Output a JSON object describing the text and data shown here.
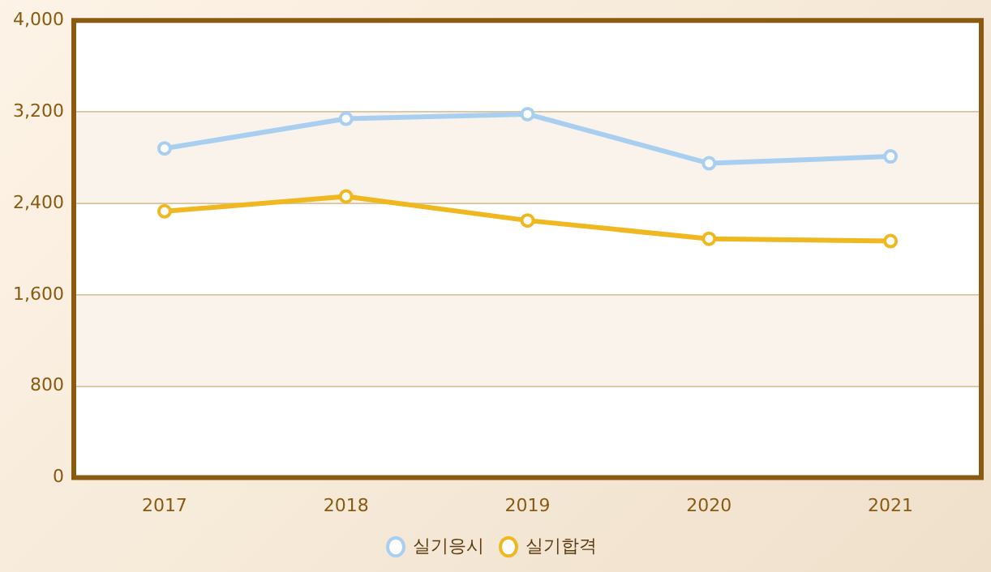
{
  "chart_data": {
    "type": "line",
    "categories": [
      "2017",
      "2018",
      "2019",
      "2020",
      "2021"
    ],
    "series": [
      {
        "name": "실기응시",
        "color": "#a9cff0",
        "values": [
          2880,
          3140,
          3180,
          2750,
          2810
        ]
      },
      {
        "name": "실기합격",
        "color": "#f0b820",
        "values": [
          2330,
          2460,
          2250,
          2090,
          2070
        ]
      }
    ],
    "ylim": [
      0,
      4000
    ],
    "yticks": [
      0,
      800,
      {
        "value": 1600,
        "label": "1,600"
      },
      {
        "value": 2400,
        "label": "2,400"
      },
      {
        "value": 3200,
        "label": "3,200"
      },
      {
        "value": 4000,
        "label": "4,000"
      }
    ],
    "grid": "y",
    "legend": "bottom",
    "marker": "circle"
  }
}
